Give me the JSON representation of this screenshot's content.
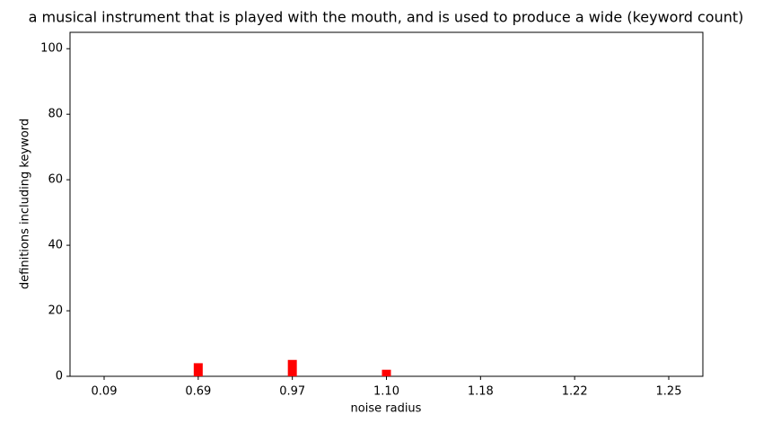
{
  "chart_data": {
    "type": "bar",
    "title": "a musical instrument that is played with the mouth, and is used to produce a wide (keyword count)",
    "x_label": "noise radius",
    "y_label": "definitions including keyword",
    "categories": [
      "0.09",
      "0.69",
      "0.97",
      "1.10",
      "1.18",
      "1.22",
      "1.25"
    ],
    "values": [
      0,
      4,
      5,
      2,
      0,
      0,
      0
    ],
    "color": "#ff0000",
    "ylim": [
      0,
      105
    ],
    "yticks": [
      0,
      20,
      40,
      60,
      80,
      100
    ],
    "grid": false
  }
}
